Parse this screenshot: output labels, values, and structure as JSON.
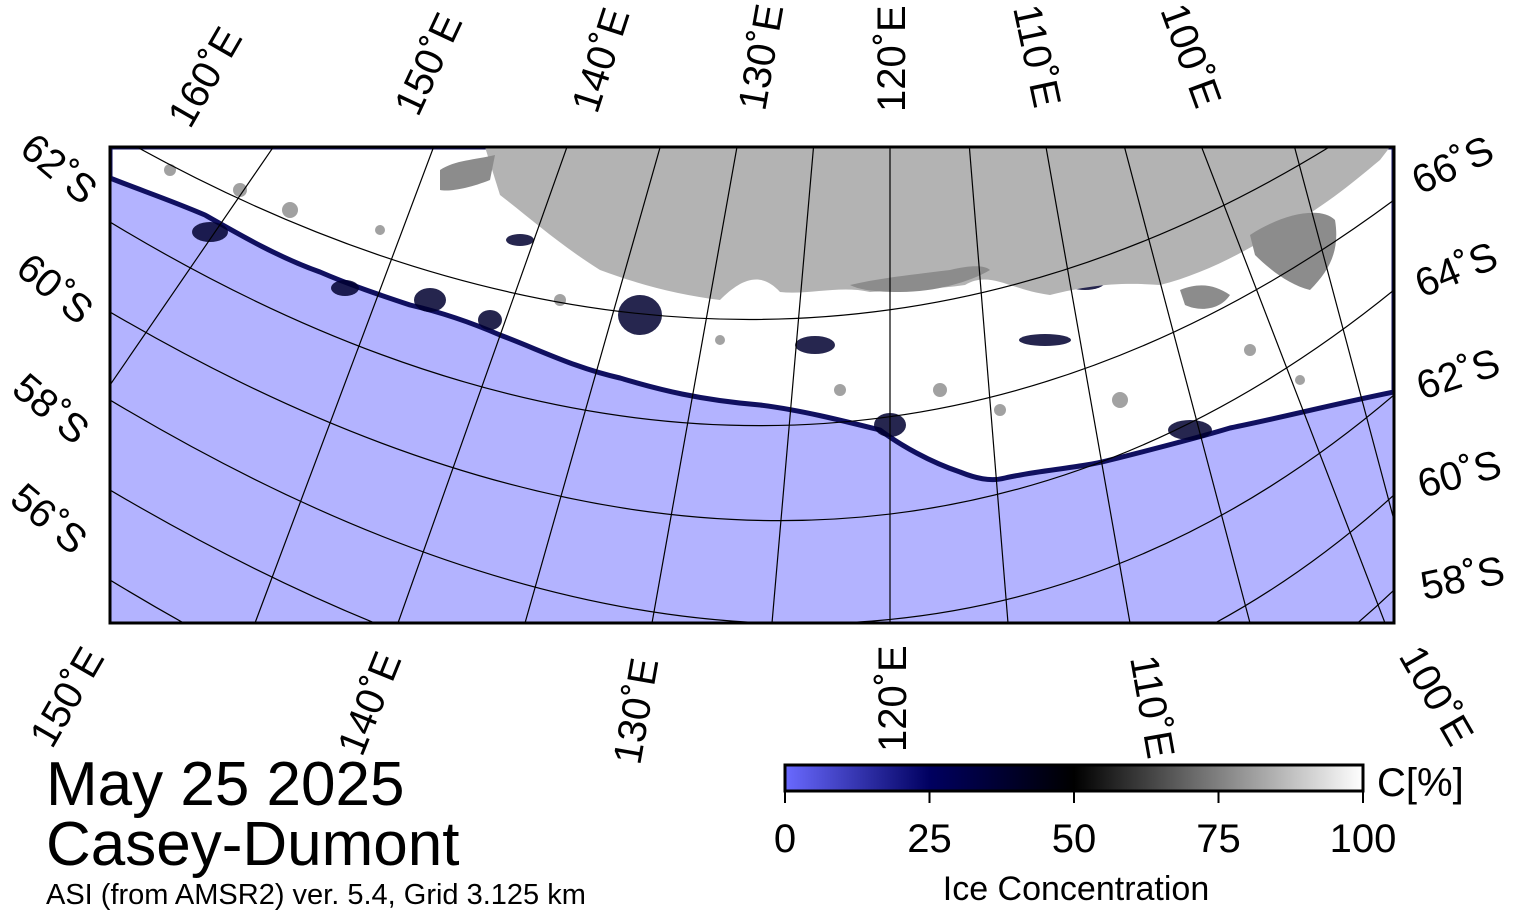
{
  "map": {
    "date": "May 25 2025",
    "region": "Casey-Dumont",
    "product": "ASI (from AMSR2) ver. 5.4,  Grid 3.125 km",
    "colors": {
      "open_water": "#b3b3ff",
      "land": "#b3b3b3",
      "land_ice_shelf": "#8c8c8c",
      "ice_full": "#ffffff",
      "ice_mid": "#000000",
      "ice_low": "#000050",
      "ice_edge": "#3030c0",
      "grid": "#000000"
    },
    "top_labels": [
      "160˚E",
      "150˚E",
      "140˚E",
      "130˚E",
      "120˚E",
      "110˚E",
      "100˚E"
    ],
    "bottom_labels": [
      "150˚E",
      "140˚E",
      "130˚E",
      "120˚E",
      "110˚E",
      "100˚E"
    ],
    "left_labels": [
      "62˚S",
      "60˚S",
      "58˚S",
      "56˚S"
    ],
    "right_labels": [
      "66˚S",
      "64˚S",
      "62˚S",
      "60˚S",
      "58˚S"
    ]
  },
  "colorbar": {
    "label": "Ice Concentration",
    "unit": "C[%]",
    "ticks": [
      "0",
      "25",
      "50",
      "75",
      "100"
    ],
    "min": 0,
    "max": 100,
    "colors": [
      "#6a6aff",
      "#000060",
      "#000000",
      "#808080",
      "#ffffff"
    ]
  }
}
